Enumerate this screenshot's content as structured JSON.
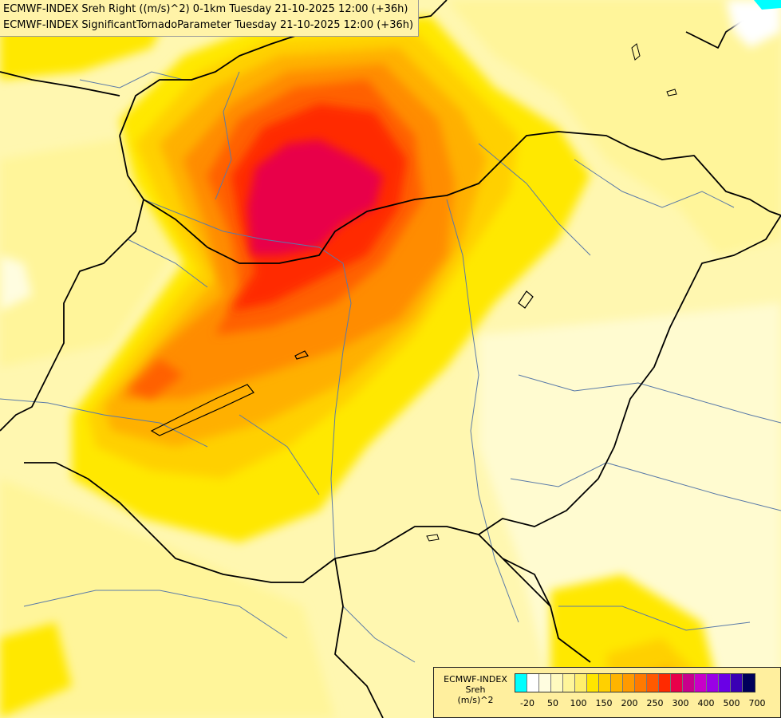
{
  "title": {
    "line1": "ECMWF-INDEX Sreh Right ((m/s)^2) 0-1km Tuesday 21-10-2025 12:00 (+36h)",
    "line2": "ECMWF-INDEX SignificantTornadoParameter Tuesday 21-10-2025 12:00 (+36h)"
  },
  "legend": {
    "line1": "ECMWF-INDEX",
    "line2": "Sreh",
    "line3": "(m/s)^2",
    "colors": [
      "#00ffff",
      "#ffffff",
      "#fffde0",
      "#fffabf",
      "#fff59a",
      "#ffef6c",
      "#ffe600",
      "#ffd000",
      "#ffb400",
      "#ff9a00",
      "#ff7a00",
      "#ff5a00",
      "#ff2a00",
      "#e8004a",
      "#c8008c",
      "#c800c8",
      "#9a00e6",
      "#6a00e6",
      "#3a00b4",
      "#00005a"
    ],
    "ticks": [
      "-20",
      "50",
      "100",
      "150",
      "200",
      "250",
      "300",
      "400",
      "500",
      "700"
    ]
  },
  "palette": {
    "pale": "#fffbd0",
    "light": "#fff59a",
    "yellow": "#ffe800",
    "gold": "#ffd000",
    "amber": "#ffb000",
    "orange": "#ff8c00",
    "darkorange": "#ff6000",
    "red": "#ff2a00",
    "crimson": "#e8004a",
    "border": "#000000",
    "river": "#5a7aa8"
  }
}
